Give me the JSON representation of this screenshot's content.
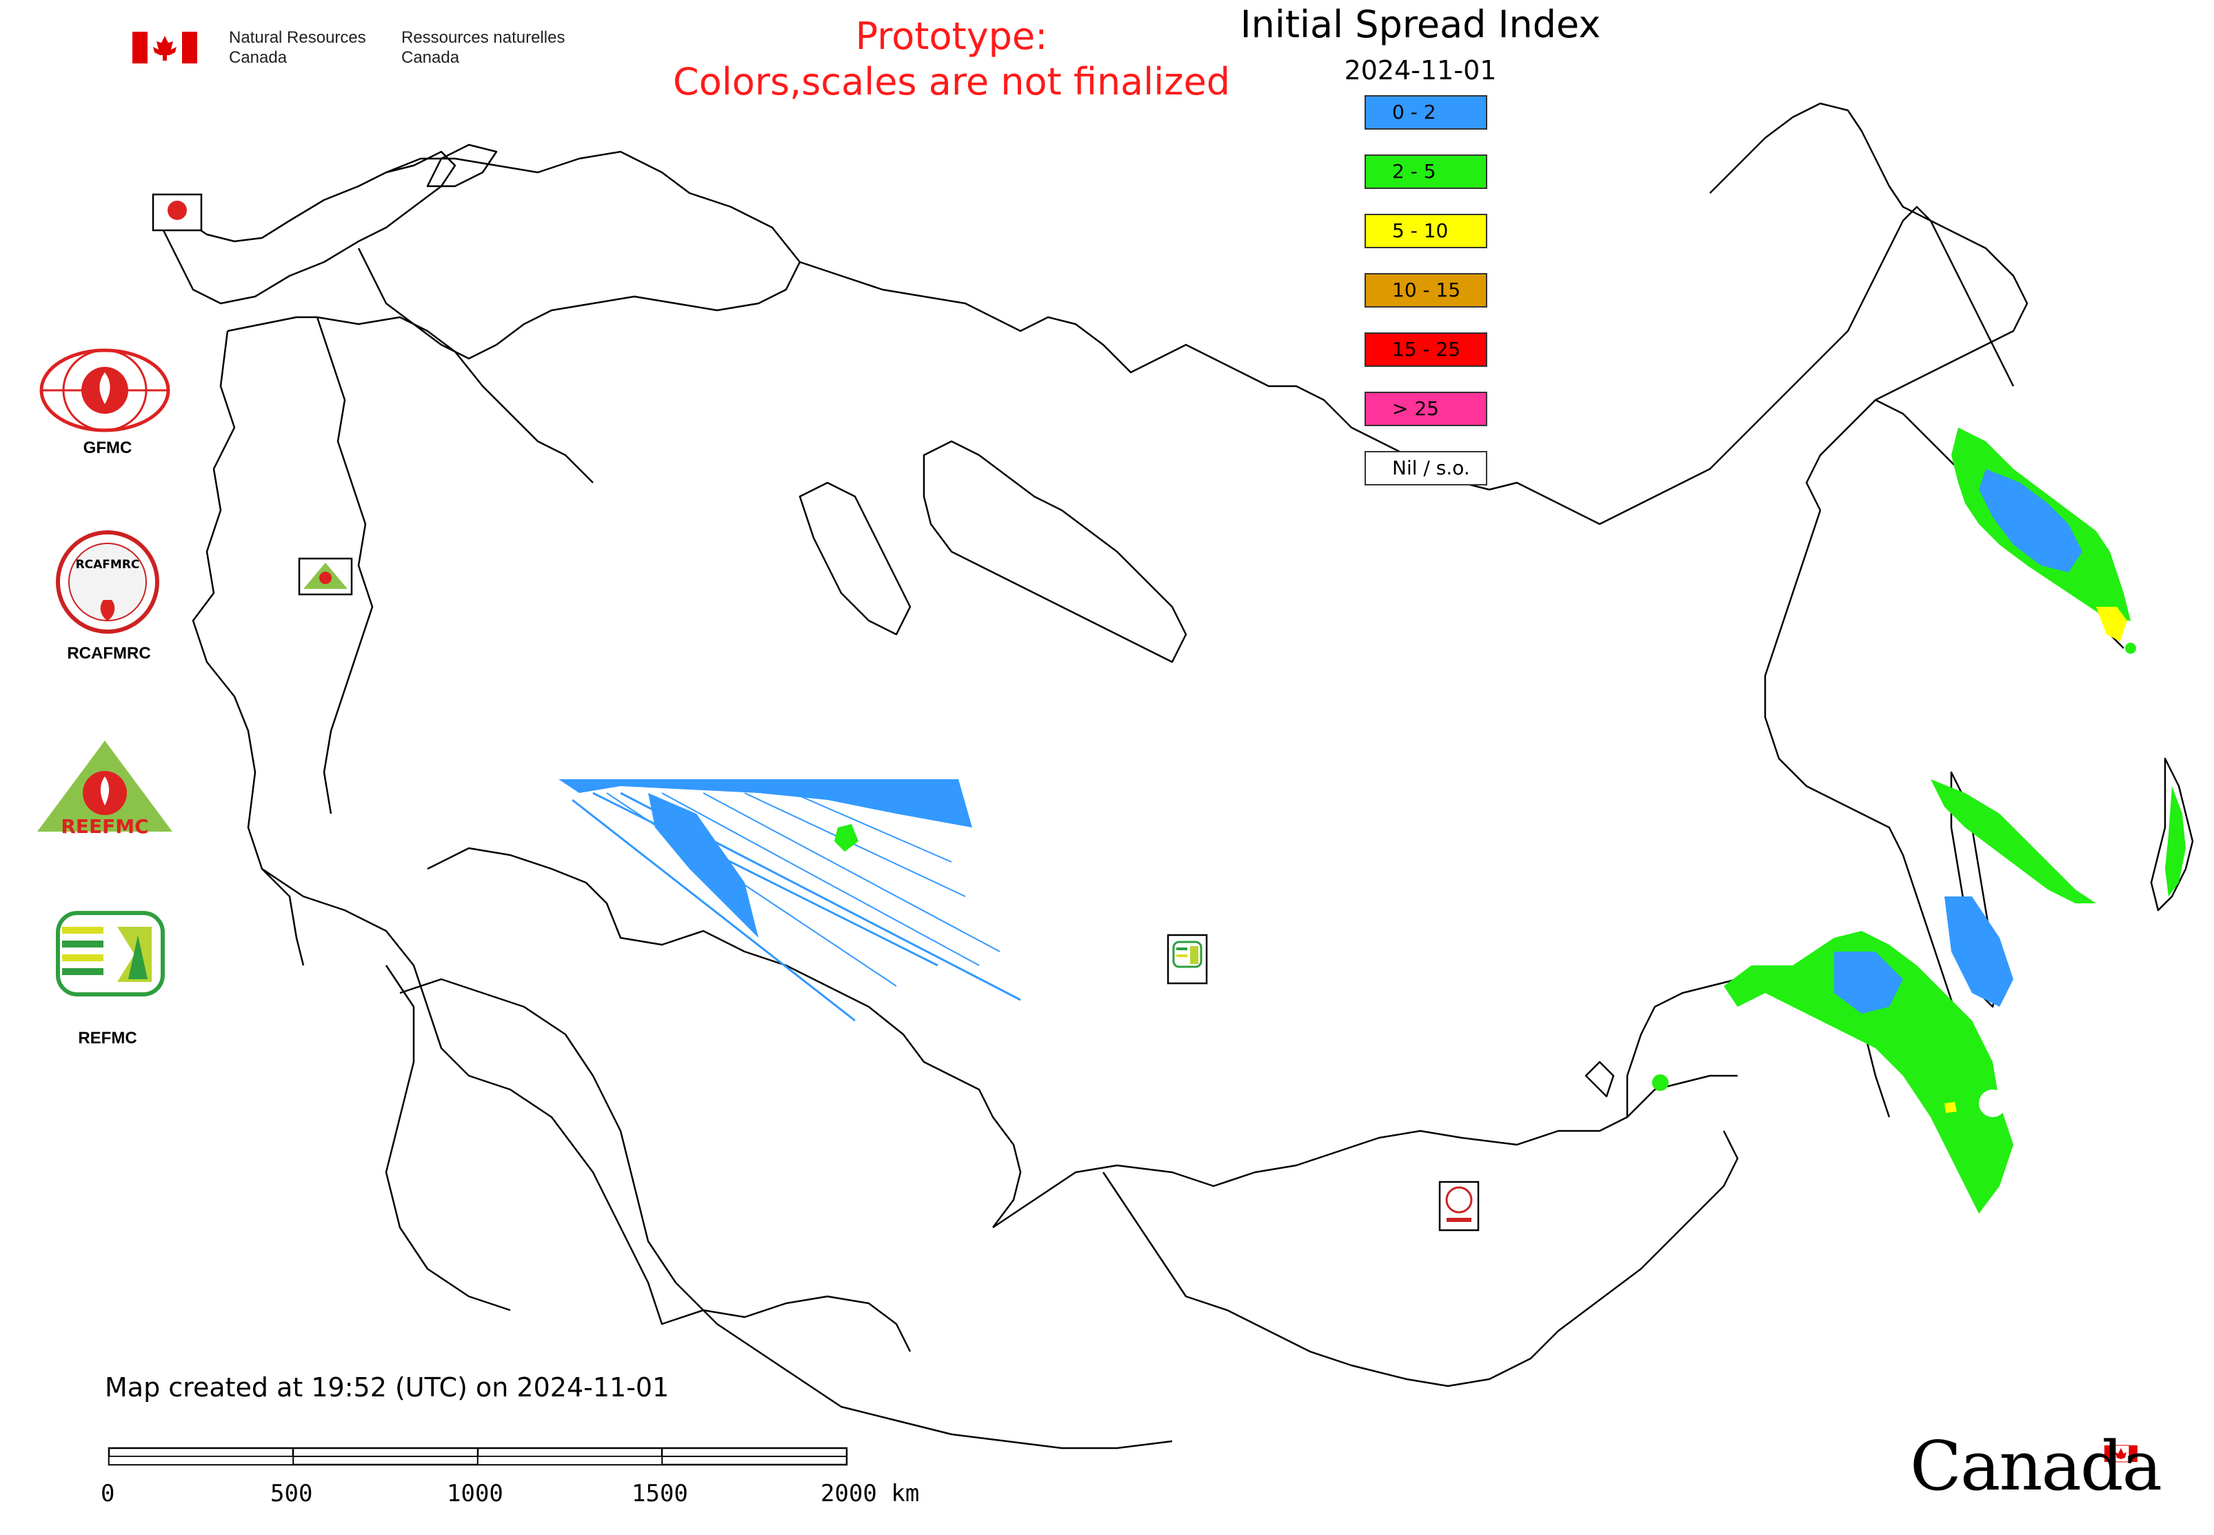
{
  "header": {
    "agency_en_line1": "Natural Resources",
    "agency_en_line2": "Canada",
    "agency_fr_line1": "Ressources naturelles",
    "agency_fr_line2": "Canada",
    "prototype_line1": "Prototype:",
    "prototype_line2": "Colors,scales are not finalized"
  },
  "map": {
    "title": "Initial Spread Index",
    "date": "2024-11-01",
    "created_note": "Map created at 19:52 (UTC) on 2024-11-01"
  },
  "legend": [
    {
      "label": "0 - 2",
      "color": "#3399ff"
    },
    {
      "label": "2 - 5",
      "color": "#22ee11"
    },
    {
      "label": "5 - 10",
      "color": "#ffff00"
    },
    {
      "label": "10 - 15",
      "color": "#dd9900"
    },
    {
      "label": "15 - 25",
      "color": "#ff0000"
    },
    {
      "label": "> 25",
      "color": "#ff3399"
    },
    {
      "label": "Nil / s.o.",
      "color": "#ffffff"
    }
  ],
  "side_logos": [
    {
      "label": "GFMC"
    },
    {
      "label": "RCAFMRC"
    },
    {
      "label": "REEFMC"
    },
    {
      "label": "REFMC"
    }
  ],
  "small_logo_texts": {
    "rcafmrc_badge": "RCAFMRC",
    "reefmc_badge": "REEFMC"
  },
  "scale_bar": {
    "ticks": [
      "0",
      "500",
      "1000",
      "1500",
      "2000 km"
    ]
  },
  "wordmark": "Canada"
}
